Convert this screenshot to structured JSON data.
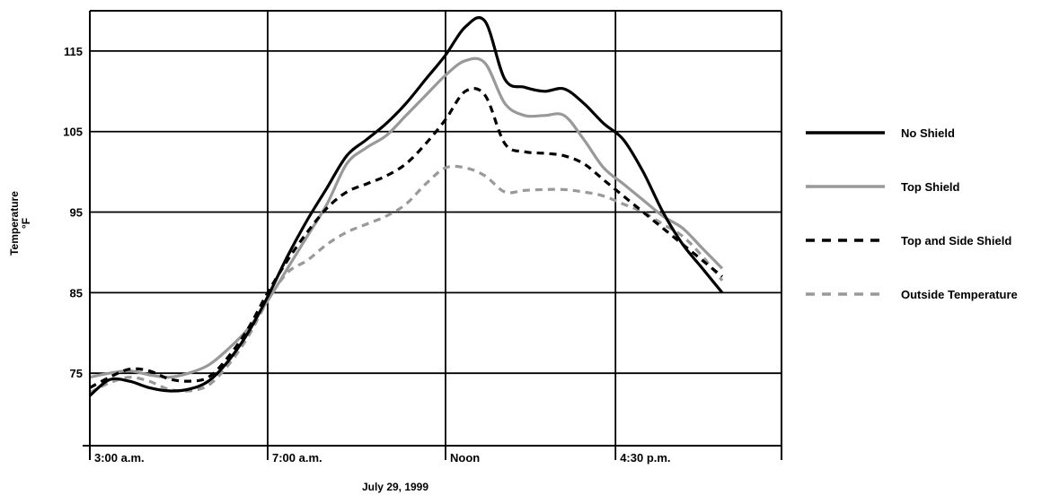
{
  "chart_data": {
    "type": "line",
    "title": "",
    "xlabel": "July 29, 1999",
    "ylabel_line1": "Temperature",
    "ylabel_line2": "°F",
    "x_range_hours": [
      3,
      20.5
    ],
    "ylim": [
      66,
      120
    ],
    "y_ticks": [
      75,
      85,
      95,
      105,
      115
    ],
    "x_ticks": [
      {
        "hour": 3,
        "label": "3:00 a.m."
      },
      {
        "hour": 7.5,
        "label": "7:00 a.m."
      },
      {
        "hour": 12,
        "label": "Noon"
      },
      {
        "hour": 16.3,
        "label": "4:30 p.m."
      }
    ],
    "grid": true,
    "legend_position": "right",
    "series": [
      {
        "name": "No Shield",
        "color": "#000000",
        "style": "solid",
        "points": [
          [
            3,
            72.2
          ],
          [
            3.5,
            74.2
          ],
          [
            4,
            74
          ],
          [
            4.5,
            73.2
          ],
          [
            5,
            72.8
          ],
          [
            5.5,
            73
          ],
          [
            6,
            74
          ],
          [
            6.5,
            76.5
          ],
          [
            7,
            80
          ],
          [
            7.5,
            84.5
          ],
          [
            8,
            89.5
          ],
          [
            8.5,
            94
          ],
          [
            9,
            98
          ],
          [
            9.5,
            102
          ],
          [
            10,
            104
          ],
          [
            10.5,
            106
          ],
          [
            11,
            108.5
          ],
          [
            11.5,
            111.5
          ],
          [
            12,
            114.5
          ],
          [
            12.5,
            118
          ],
          [
            13,
            118.7
          ],
          [
            13.5,
            111.5
          ],
          [
            14,
            110.5
          ],
          [
            14.5,
            110
          ],
          [
            15,
            110.3
          ],
          [
            15.5,
            108.5
          ],
          [
            16,
            106
          ],
          [
            16.5,
            104
          ],
          [
            17,
            100
          ],
          [
            17.5,
            95
          ],
          [
            18,
            91
          ],
          [
            18.5,
            88
          ],
          [
            19,
            85
          ]
        ]
      },
      {
        "name": "Top Shield",
        "color": "#999999",
        "style": "solid",
        "points": [
          [
            3,
            74.5
          ],
          [
            3.5,
            75
          ],
          [
            4,
            75.3
          ],
          [
            4.5,
            74.8
          ],
          [
            5,
            74.5
          ],
          [
            5.5,
            75
          ],
          [
            6,
            76
          ],
          [
            6.5,
            78
          ],
          [
            7,
            80.5
          ],
          [
            7.5,
            84
          ],
          [
            8,
            88
          ],
          [
            8.5,
            92
          ],
          [
            9,
            96
          ],
          [
            9.5,
            101
          ],
          [
            10,
            103
          ],
          [
            10.5,
            104.5
          ],
          [
            11,
            107
          ],
          [
            11.5,
            109.5
          ],
          [
            12,
            112
          ],
          [
            12.5,
            113.8
          ],
          [
            13,
            113.5
          ],
          [
            13.5,
            108.5
          ],
          [
            14,
            107
          ],
          [
            14.5,
            107
          ],
          [
            15,
            107
          ],
          [
            15.5,
            104
          ],
          [
            16,
            100.5
          ],
          [
            16.5,
            98.5
          ],
          [
            17,
            96.5
          ],
          [
            17.5,
            94.5
          ],
          [
            18,
            93
          ],
          [
            18.5,
            90.5
          ],
          [
            19,
            88
          ]
        ]
      },
      {
        "name": "Top and Side Shield",
        "color": "#000000",
        "style": "dashed",
        "points": [
          [
            3,
            73.2
          ],
          [
            3.5,
            74.5
          ],
          [
            4,
            75.5
          ],
          [
            4.5,
            75.3
          ],
          [
            5,
            74.3
          ],
          [
            5.5,
            74
          ],
          [
            6,
            74.5
          ],
          [
            6.5,
            77
          ],
          [
            7,
            80.5
          ],
          [
            7.5,
            85
          ],
          [
            8,
            89
          ],
          [
            8.5,
            92.5
          ],
          [
            9,
            95.5
          ],
          [
            9.5,
            97.5
          ],
          [
            10,
            98.5
          ],
          [
            10.5,
            99.5
          ],
          [
            11,
            101
          ],
          [
            11.5,
            103.5
          ],
          [
            12,
            106.5
          ],
          [
            12.5,
            110
          ],
          [
            13,
            109.5
          ],
          [
            13.5,
            103.5
          ],
          [
            14,
            102.5
          ],
          [
            14.5,
            102.3
          ],
          [
            15,
            102
          ],
          [
            15.5,
            101
          ],
          [
            16,
            99
          ],
          [
            16.5,
            97
          ],
          [
            17,
            95
          ],
          [
            17.5,
            93
          ],
          [
            18,
            91
          ],
          [
            18.5,
            89
          ],
          [
            19,
            87
          ]
        ]
      },
      {
        "name": "Outside Temperature",
        "color": "#999999",
        "style": "dashed",
        "points": [
          [
            3,
            72.6
          ],
          [
            3.5,
            73.8
          ],
          [
            4,
            74.5
          ],
          [
            4.5,
            74
          ],
          [
            5,
            73
          ],
          [
            5.5,
            72.8
          ],
          [
            6,
            73.5
          ],
          [
            6.5,
            76
          ],
          [
            7,
            79.5
          ],
          [
            7.5,
            84
          ],
          [
            8,
            87.5
          ],
          [
            8.5,
            89
          ],
          [
            9,
            91
          ],
          [
            9.5,
            92.5
          ],
          [
            10,
            93.5
          ],
          [
            10.5,
            94.5
          ],
          [
            11,
            96
          ],
          [
            11.5,
            98.5
          ],
          [
            12,
            100.5
          ],
          [
            12.5,
            100.5
          ],
          [
            13,
            99.5
          ],
          [
            13.5,
            97.5
          ],
          [
            14,
            97.7
          ],
          [
            14.5,
            97.8
          ],
          [
            15,
            97.8
          ],
          [
            15.5,
            97.5
          ],
          [
            16,
            97
          ],
          [
            16.5,
            96
          ],
          [
            17,
            95
          ],
          [
            17.5,
            93.5
          ],
          [
            18,
            92
          ],
          [
            18.5,
            89.5
          ],
          [
            19,
            86.5
          ]
        ]
      }
    ]
  }
}
